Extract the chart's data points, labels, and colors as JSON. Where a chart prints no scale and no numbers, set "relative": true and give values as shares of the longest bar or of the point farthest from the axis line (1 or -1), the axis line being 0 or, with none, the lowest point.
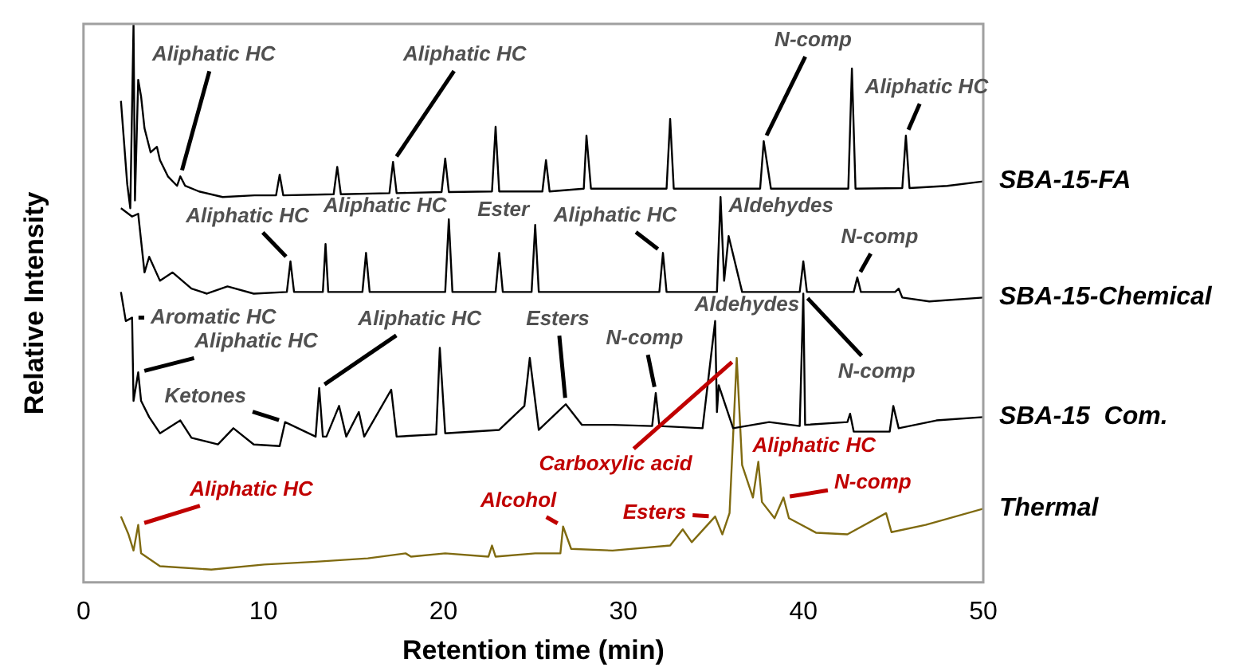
{
  "chart_data": {
    "type": "line",
    "relative": true,
    "xlabel": "Retention time (min)",
    "ylabel": "Relative Intensity",
    "xlim": [
      0,
      50
    ],
    "xticks": [
      0,
      10,
      20,
      30,
      40,
      50
    ],
    "grid": false,
    "legend": false,
    "marker": "none",
    "line_style": "solid",
    "series": [
      {
        "name": "SBA-15-FA",
        "color": "#000000",
        "x": [
          2.08,
          2.43,
          2.6,
          2.78,
          2.86,
          3.04,
          3.2,
          3.39,
          3.73,
          4.08,
          4.25,
          4.69,
          5.2,
          5.38,
          5.65,
          6.42,
          7.73,
          9.5,
          10.7,
          10.9,
          11.1,
          13.9,
          14.1,
          14.3,
          17.0,
          17.2,
          17.4,
          19.9,
          20.1,
          20.3,
          22.7,
          22.9,
          23.1,
          25.5,
          25.7,
          25.9,
          27.8,
          27.95,
          28.2,
          32.4,
          32.6,
          32.8,
          37.6,
          37.8,
          38.2,
          42.5,
          42.7,
          42.9,
          45.5,
          45.7,
          45.9,
          48.0,
          50
        ],
        "values": [
          0.862,
          0.713,
          0.67,
          1.0,
          0.684,
          0.9,
          0.87,
          0.813,
          0.77,
          0.78,
          0.756,
          0.727,
          0.71,
          0.727,
          0.71,
          0.7,
          0.69,
          0.693,
          0.693,
          0.73,
          0.693,
          0.695,
          0.744,
          0.695,
          0.697,
          0.753,
          0.697,
          0.699,
          0.759,
          0.699,
          0.7,
          0.816,
          0.7,
          0.7,
          0.756,
          0.7,
          0.705,
          0.8,
          0.705,
          0.705,
          0.83,
          0.705,
          0.705,
          0.79,
          0.705,
          0.705,
          0.92,
          0.705,
          0.706,
          0.8,
          0.706,
          0.71,
          0.718
        ]
      },
      {
        "name": "SBA-15-Chemical",
        "color": "#000000",
        "x": [
          2.08,
          2.7,
          3.04,
          3.39,
          3.65,
          4.25,
          4.95,
          6.0,
          6.86,
          8.0,
          9.46,
          11.3,
          11.5,
          11.7,
          13.3,
          13.45,
          13.6,
          15.5,
          15.7,
          15.9,
          20.1,
          20.3,
          20.5,
          22.9,
          23.1,
          23.3,
          24.9,
          25.1,
          25.3,
          32.0,
          32.2,
          32.4,
          35.2,
          35.4,
          35.6,
          35.85,
          36.6,
          39.8,
          40.0,
          40.2,
          42.8,
          43.0,
          43.2,
          45.1,
          45.3,
          45.5,
          47.0,
          50
        ],
        "values": [
          0.67,
          0.655,
          0.66,
          0.555,
          0.583,
          0.54,
          0.555,
          0.526,
          0.517,
          0.53,
          0.517,
          0.52,
          0.575,
          0.52,
          0.52,
          0.606,
          0.52,
          0.52,
          0.59,
          0.52,
          0.52,
          0.65,
          0.52,
          0.52,
          0.59,
          0.52,
          0.52,
          0.64,
          0.52,
          0.52,
          0.59,
          0.52,
          0.52,
          0.69,
          0.54,
          0.62,
          0.52,
          0.52,
          0.575,
          0.52,
          0.52,
          0.546,
          0.52,
          0.52,
          0.526,
          0.51,
          0.503,
          0.51
        ]
      },
      {
        "name": "SBA-15  Com.",
        "color": "#000000",
        "x": [
          2.08,
          2.35,
          2.7,
          2.78,
          3.04,
          3.2,
          3.65,
          4.25,
          5.38,
          6.0,
          7.47,
          8.33,
          9.46,
          10.9,
          11.2,
          12.9,
          13.1,
          13.3,
          13.5,
          14.2,
          14.6,
          15.3,
          15.6,
          17.1,
          17.4,
          19.6,
          19.8,
          20.1,
          23.1,
          24.5,
          24.8,
          25.3,
          26.8,
          27.7,
          29.4,
          31.6,
          31.8,
          32.0,
          34.4,
          35.1,
          35.2,
          35.3,
          36.1,
          38.1,
          39.8,
          40.0,
          40.1,
          42.45,
          42.6,
          42.8,
          44.8,
          45.0,
          45.3,
          47.4,
          50
        ],
        "values": [
          0.52,
          0.468,
          0.474,
          0.325,
          0.376,
          0.325,
          0.296,
          0.267,
          0.29,
          0.259,
          0.247,
          0.276,
          0.247,
          0.244,
          0.287,
          0.261,
          0.348,
          0.261,
          0.261,
          0.316,
          0.261,
          0.305,
          0.261,
          0.345,
          0.261,
          0.265,
          0.42,
          0.267,
          0.273,
          0.316,
          0.402,
          0.273,
          0.319,
          0.282,
          0.282,
          0.28,
          0.339,
          0.28,
          0.276,
          0.468,
          0.305,
          0.353,
          0.276,
          0.287,
          0.28,
          0.517,
          0.282,
          0.287,
          0.302,
          0.27,
          0.27,
          0.316,
          0.276,
          0.29,
          0.296
        ]
      },
      {
        "name": "Thermal",
        "color": "#7f6a10",
        "x": [
          2.08,
          2.5,
          2.78,
          3.04,
          3.2,
          4.25,
          7.1,
          10.05,
          12.9,
          15.8,
          17.9,
          18.2,
          20.1,
          22.5,
          22.7,
          22.9,
          25.1,
          26.5,
          26.65,
          27.1,
          29.4,
          32.6,
          33.3,
          33.8,
          35.1,
          35.5,
          35.9,
          36.3,
          36.6,
          37.2,
          37.5,
          37.7,
          38.4,
          38.9,
          39.2,
          40.7,
          42.45,
          44.6,
          44.9,
          46.8,
          50
        ],
        "values": [
          0.118,
          0.086,
          0.057,
          0.103,
          0.052,
          0.029,
          0.023,
          0.032,
          0.037,
          0.043,
          0.052,
          0.046,
          0.052,
          0.046,
          0.066,
          0.046,
          0.052,
          0.052,
          0.1,
          0.06,
          0.057,
          0.066,
          0.095,
          0.072,
          0.118,
          0.086,
          0.124,
          0.402,
          0.21,
          0.152,
          0.216,
          0.144,
          0.115,
          0.152,
          0.115,
          0.089,
          0.086,
          0.124,
          0.09,
          0.103,
          0.132
        ]
      }
    ],
    "annotations": [
      {
        "text": "Aliphatic HC",
        "x": 5.38,
        "y": 0.727
      },
      {
        "text": "Aliphatic HC",
        "x": 17.2,
        "y": 0.753
      },
      {
        "text": "N-comp",
        "x": 37.8,
        "y": 0.79
      },
      {
        "text": "Aliphatic HC",
        "x": 45.7,
        "y": 0.8
      },
      {
        "text": "Aliphatic HC",
        "x": 11.5,
        "y": 0.575
      },
      {
        "text": "Aliphatic HC",
        "x": 20.3,
        "y": 0.65
      },
      {
        "text": "Ester",
        "x": 25.1,
        "y": 0.64
      },
      {
        "text": "Aliphatic HC",
        "x": 32.2,
        "y": 0.59
      },
      {
        "text": "Aldehydes",
        "x": 35.4,
        "y": 0.69
      },
      {
        "text": "N-comp",
        "x": 43.0,
        "y": 0.546
      },
      {
        "text": "Aromatic HC",
        "x": 2.7,
        "y": 0.474
      },
      {
        "text": "Aliphatic HC",
        "x": 3.04,
        "y": 0.376
      },
      {
        "text": "Ketones",
        "x": 11.2,
        "y": 0.287
      },
      {
        "text": "Aliphatic HC",
        "x": 13.1,
        "y": 0.348
      },
      {
        "text": "Esters",
        "x": 26.8,
        "y": 0.319
      },
      {
        "text": "N-comp",
        "x": 31.8,
        "y": 0.339
      },
      {
        "text": "Aldehydes",
        "x": 35.1,
        "y": 0.468
      },
      {
        "text": "N-comp",
        "x": 40.0,
        "y": 0.517
      },
      {
        "text": "Aliphatic HC",
        "x": 3.04,
        "y": 0.103
      },
      {
        "text": "Alcohol",
        "x": 26.65,
        "y": 0.1
      },
      {
        "text": "Carboxylic acid",
        "x": 36.3,
        "y": 0.402
      },
      {
        "text": "Esters",
        "x": 35.1,
        "y": 0.118
      },
      {
        "text": "Aliphatic HC",
        "x": 37.5,
        "y": 0.216
      },
      {
        "text": "N-comp",
        "x": 38.9,
        "y": 0.152
      }
    ]
  }
}
